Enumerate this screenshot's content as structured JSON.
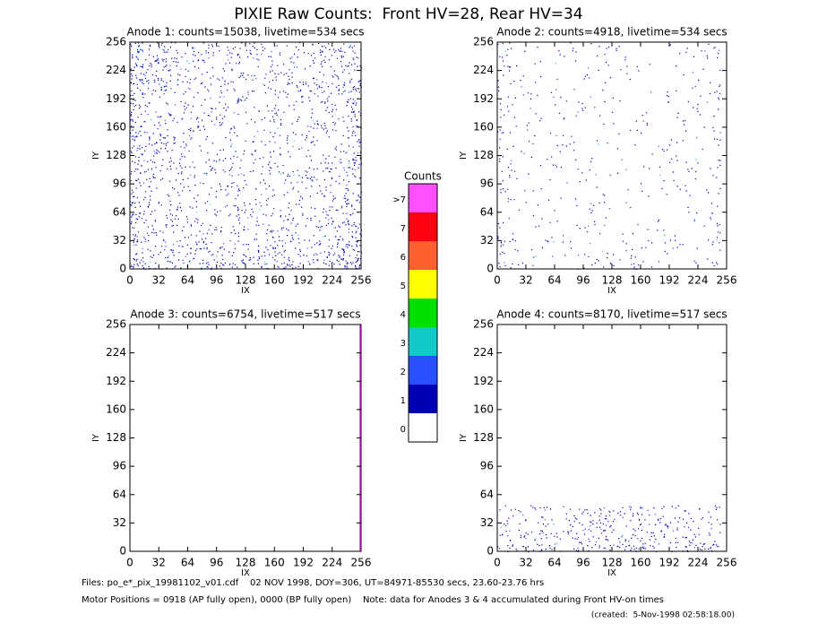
{
  "title": "PIXIE Raw Counts:  Front HV=28, Rear HV=34",
  "chart_data": [
    {
      "type": "heatmap",
      "title": "Anode 1: counts=15038, livetime=534 secs",
      "x_label": "IX",
      "y_label": "IY",
      "xlim": [
        0,
        256
      ],
      "ylim": [
        0,
        256
      ],
      "xticks": [
        0,
        32,
        64,
        96,
        128,
        160,
        192,
        224,
        256
      ],
      "yticks": [
        0,
        32,
        64,
        96,
        128,
        160,
        192,
        224,
        256
      ]
    },
    {
      "type": "heatmap",
      "title": "Anode 2: counts=4918, livetime=534 secs",
      "x_label": "IX",
      "y_label": "IY",
      "xlim": [
        0,
        256
      ],
      "ylim": [
        0,
        256
      ],
      "xticks": [
        0,
        32,
        64,
        96,
        128,
        160,
        192,
        224,
        256
      ],
      "yticks": [
        0,
        32,
        64,
        96,
        128,
        160,
        192,
        224,
        256
      ]
    },
    {
      "type": "heatmap",
      "title": "Anode 3: counts=6754, livetime=517 secs",
      "x_label": "IX",
      "y_label": "IY",
      "xlim": [
        0,
        256
      ],
      "ylim": [
        0,
        256
      ],
      "xticks": [
        0,
        32,
        64,
        96,
        128,
        160,
        192,
        224,
        256
      ],
      "yticks": [
        0,
        32,
        64,
        96,
        128,
        160,
        192,
        224,
        256
      ]
    },
    {
      "type": "heatmap",
      "title": "Anode 4: counts=8170, livetime=517 secs",
      "x_label": "IX",
      "y_label": "IY",
      "xlim": [
        0,
        256
      ],
      "ylim": [
        0,
        256
      ],
      "xticks": [
        0,
        32,
        64,
        96,
        128,
        160,
        192,
        224,
        256
      ],
      "yticks": [
        0,
        32,
        64,
        96,
        128,
        160,
        192,
        224,
        256
      ]
    }
  ],
  "colorbar": {
    "title": "Counts",
    "labels": [
      "0",
      "1",
      "2",
      "3",
      "4",
      "5",
      "6",
      "7",
      ">7"
    ],
    "colors": [
      "#ffffff",
      "#0000b4",
      "#2850ff",
      "#10c8c8",
      "#00e000",
      "#ffff00",
      "#ff6030",
      "#ff0010",
      "#ff50ff"
    ]
  },
  "footer": [
    "Files: po_e*_pix_19981102_v01.cdf    02 NOV 1998, DOY=306, UT=84971-85530 secs, 23.60-23.76 hrs",
    "Motor Positions = 0918 (AP fully open), 0000 (BP fully open)    Note: data for Anodes 3 & 4 accumulated during Front HV-on times",
    "(created:  5-Nov-1998 02:58:18.00)"
  ]
}
